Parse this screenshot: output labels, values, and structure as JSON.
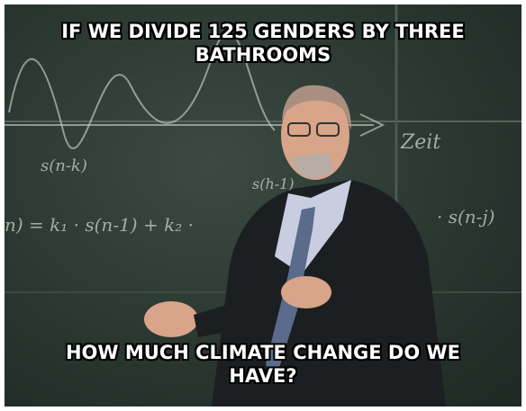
{
  "meme": {
    "top_text": "IF WE DIVIDE 125 GENDERS BY THREE BATHROOMS",
    "bottom_text": "HOW MUCH CLIMATE CHANGE DO WE HAVE?"
  },
  "chalkboard": {
    "writings": [
      "s(n-k)",
      "Zeit",
      "s(h-1)",
      "n) = k₁ · s(n-1) + k₂ ·",
      "· s(n-j)"
    ]
  }
}
